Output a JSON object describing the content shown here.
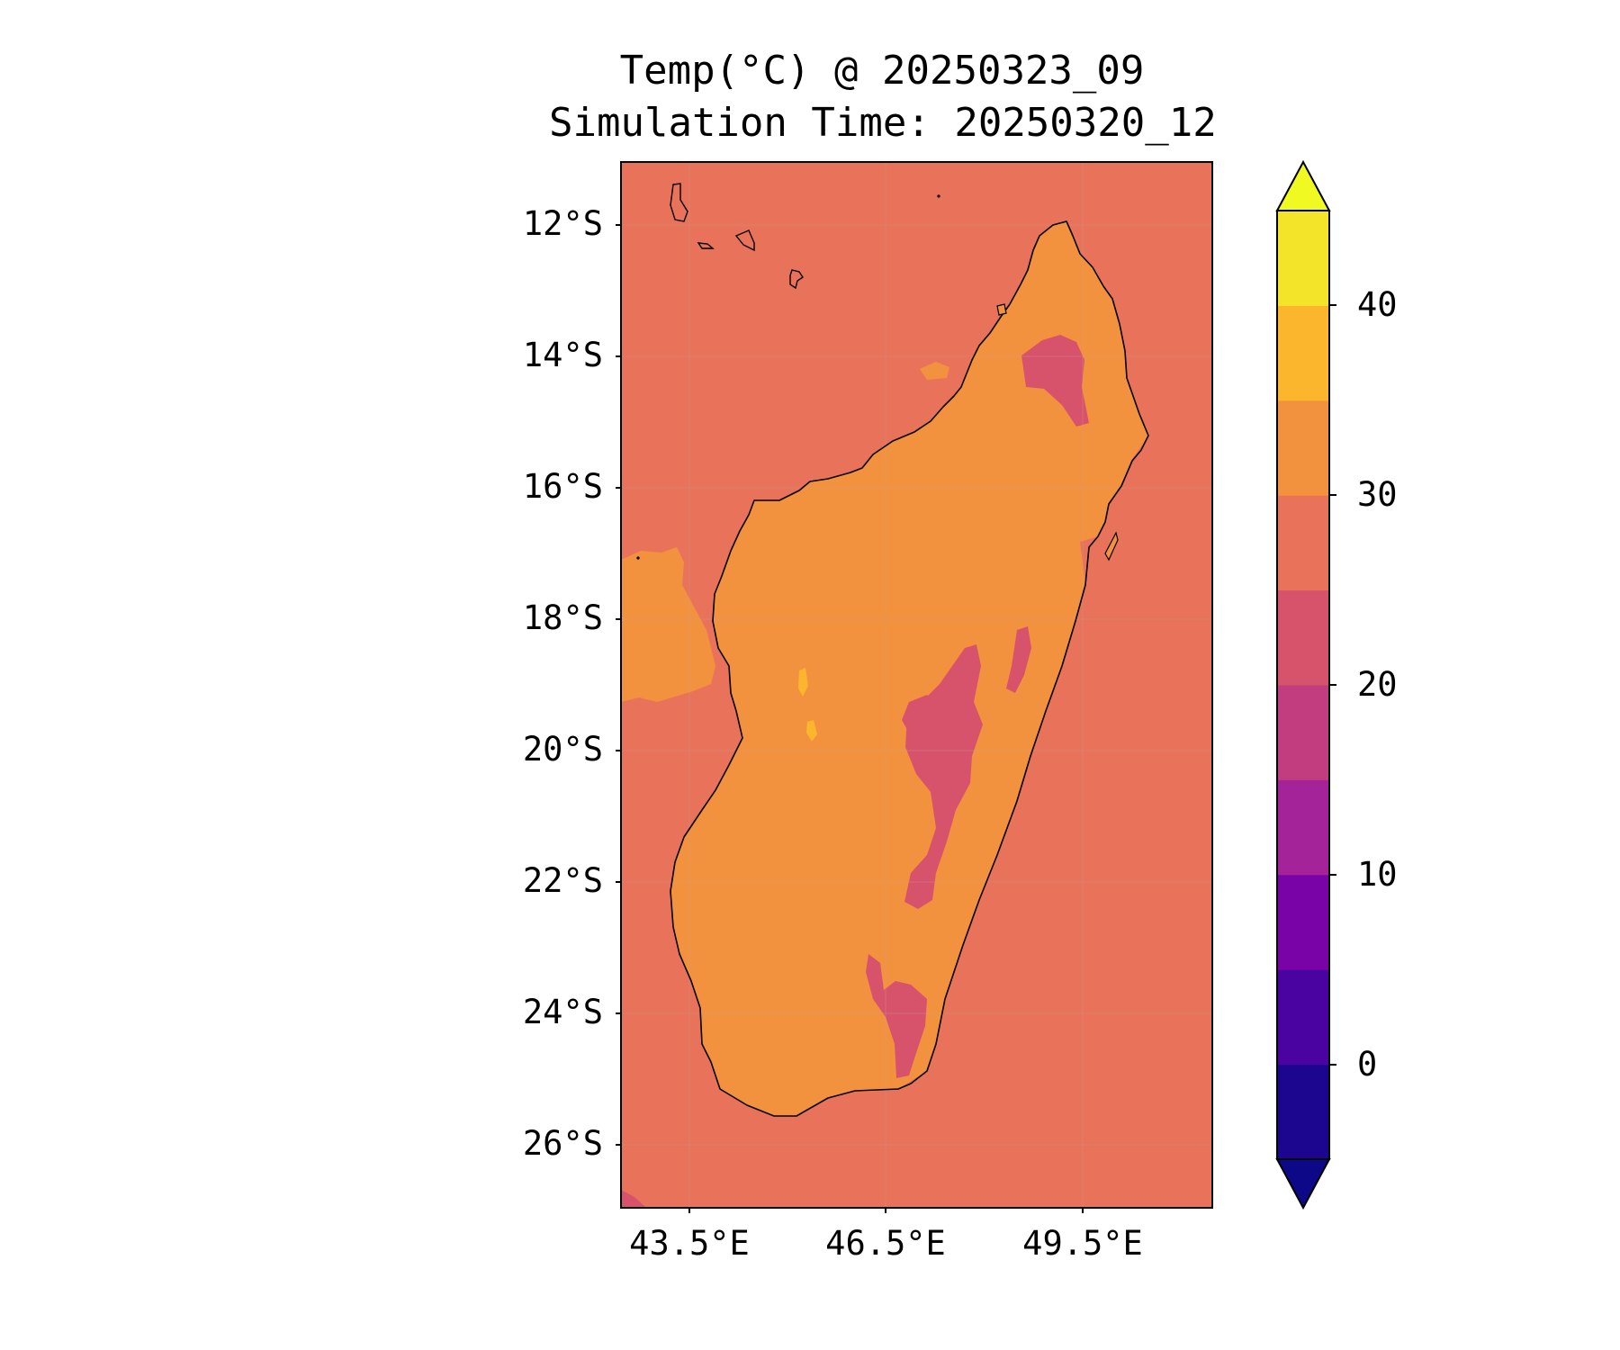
{
  "title": {
    "line1": "Temp(°C) @ 20250323_09",
    "line2": "Simulation Time: 20250320_12"
  },
  "map": {
    "region": "Madagascar",
    "lat_ticks": [
      "12°S",
      "14°S",
      "16°S",
      "18°S",
      "20°S",
      "22°S",
      "24°S",
      "26°S"
    ],
    "lon_ticks": [
      "43.5°E",
      "46.5°E",
      "49.5°E"
    ],
    "lat_range": [
      -26.9,
      -11.0
    ],
    "lon_range": [
      42.5,
      51.5
    ],
    "gridlines": true,
    "coastline_color": "#000000",
    "fills": {
      "ocean": "#e8735a",
      "land_warm": "#f3923e",
      "highland": "#d6536b",
      "hot_spot": "#fbb62d"
    }
  },
  "colorbar": {
    "colormap": "plasma",
    "extend": "both",
    "tick_labels": [
      "40",
      "30",
      "20",
      "10",
      "0"
    ],
    "levels": [
      -5,
      0,
      5,
      10,
      15,
      20,
      25,
      30,
      35,
      40,
      45
    ],
    "bin_colors": [
      "#1c0690",
      "#4a02a0",
      "#7a03a8",
      "#a42399",
      "#c23d80",
      "#d6536b",
      "#e8735a",
      "#f3923e",
      "#fbb62d",
      "#f3e42a"
    ],
    "under_color": "#0d0887",
    "over_color": "#f0f921"
  }
}
